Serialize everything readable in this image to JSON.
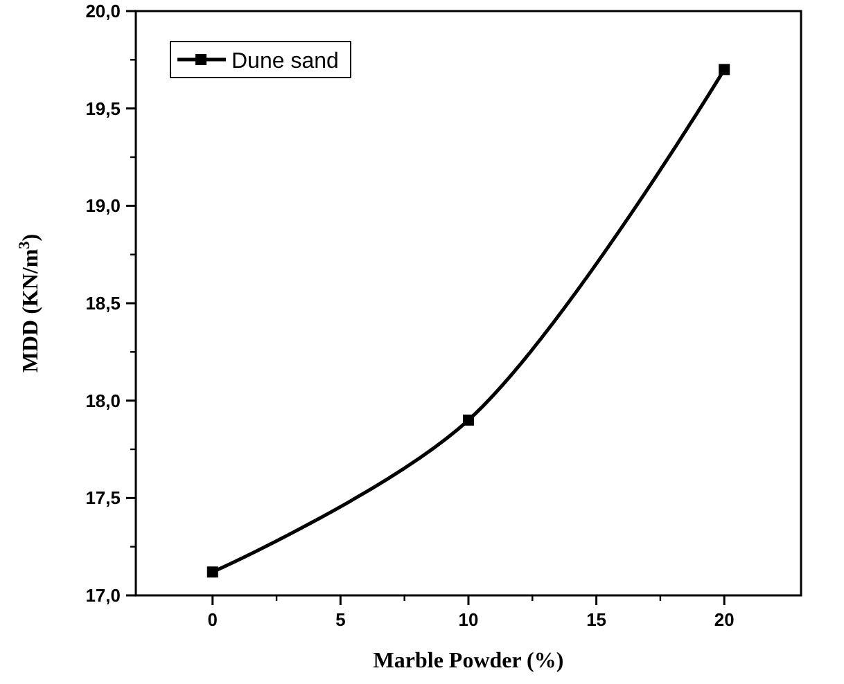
{
  "chart_data": {
    "type": "line",
    "xlabel": "Marble Powder (%)",
    "ylabel": "MDD (KN/m$^{3}$)",
    "x": [
      0,
      10,
      20
    ],
    "series": [
      {
        "name": "Dune sand",
        "color": "#000000",
        "values": [
          17.12,
          17.9,
          19.7
        ]
      }
    ],
    "xlim": [
      -3,
      23
    ],
    "xticks": [
      0,
      5,
      10,
      15,
      20
    ],
    "ylim": [
      17,
      20
    ],
    "yticks": [
      {
        "value": 17,
        "label": "17,0"
      },
      {
        "value": 17.5,
        "label": "17,5"
      },
      {
        "value": 18,
        "label": "18,0"
      },
      {
        "value": 18.5,
        "label": "18,5"
      },
      {
        "value": 19,
        "label": "19,0"
      },
      {
        "value": 19.5,
        "label": "19,5"
      },
      {
        "value": 20,
        "label": "20,0"
      }
    ],
    "marker": "square",
    "line_style": "solid",
    "legend": "top left",
    "grid": false
  }
}
